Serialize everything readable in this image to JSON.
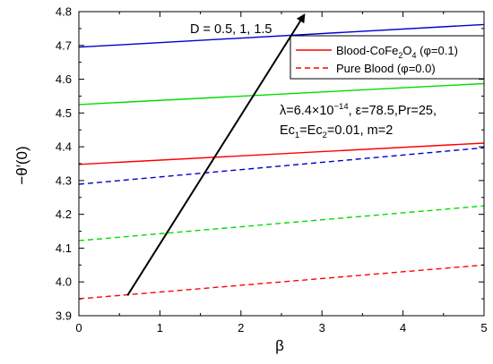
{
  "chart_data": {
    "type": "line",
    "xlabel": "β",
    "ylabel": "−θ′(0)",
    "xlim": [
      0,
      5
    ],
    "ylim": [
      3.9,
      4.8
    ],
    "xticks": [
      "0",
      "1",
      "2",
      "3",
      "4",
      "5"
    ],
    "yticks": [
      "3.9",
      "4.0",
      "4.1",
      "4.2",
      "4.3",
      "4.4",
      "4.5",
      "4.6",
      "4.7",
      "4.8"
    ],
    "grid": false,
    "legend_position": "top-right",
    "legend": [
      {
        "label_main": "Blood-CoFe",
        "label_sub": "2",
        "label_main2": "O",
        "label_sub2": "4",
        "label_tail": " (φ=0.1)",
        "style": "solid"
      },
      {
        "label_plain": "Pure Blood (φ=0.0)",
        "style": "dashed"
      }
    ],
    "annotation": {
      "line1": "λ=6.4×10",
      "line1_sup": "−14",
      "line1_tail": ", ε=78.5,Pr=25,",
      "line2_a": "Ec",
      "line2_sub1": "1",
      "line2_b": "=Ec",
      "line2_sub2": "2",
      "line2_c": "=0.01, m=2"
    },
    "arrow_label": "D = 0.5, 1, 1.5",
    "arrow": {
      "from": [
        0.6,
        3.96
      ],
      "to": [
        2.78,
        4.79
      ]
    },
    "colors": {
      "D=0.5": "#ff0000",
      "D=1": "#00dd00",
      "D=1.5": "#0000cc"
    },
    "series": [
      {
        "name": "Blood-CoFe2O4 (φ=0.1)",
        "D": "1.5",
        "style": "solid",
        "color": "#0000cc",
        "x": [
          0,
          5
        ],
        "values": [
          4.695,
          4.762
        ]
      },
      {
        "name": "Blood-CoFe2O4 (φ=0.1)",
        "D": "1",
        "style": "solid",
        "color": "#00dd00",
        "x": [
          0,
          5
        ],
        "values": [
          4.525,
          4.587
        ]
      },
      {
        "name": "Blood-CoFe2O4 (φ=0.1)",
        "D": "0.5",
        "style": "solid",
        "color": "#ff0000",
        "x": [
          0,
          5
        ],
        "values": [
          4.348,
          4.411
        ]
      },
      {
        "name": "Pure Blood (φ=0.0)",
        "D": "1.5",
        "style": "dashed",
        "color": "#0000cc",
        "x": [
          0,
          5
        ],
        "values": [
          4.289,
          4.397
        ]
      },
      {
        "name": "Pure Blood (φ=0.0)",
        "D": "1",
        "style": "dashed",
        "color": "#00dd00",
        "x": [
          0,
          5
        ],
        "values": [
          4.122,
          4.225
        ]
      },
      {
        "name": "Pure Blood (φ=0.0)",
        "D": "0.5",
        "style": "dashed",
        "color": "#ff0000",
        "x": [
          0,
          5
        ],
        "values": [
          3.95,
          4.05
        ]
      }
    ]
  }
}
